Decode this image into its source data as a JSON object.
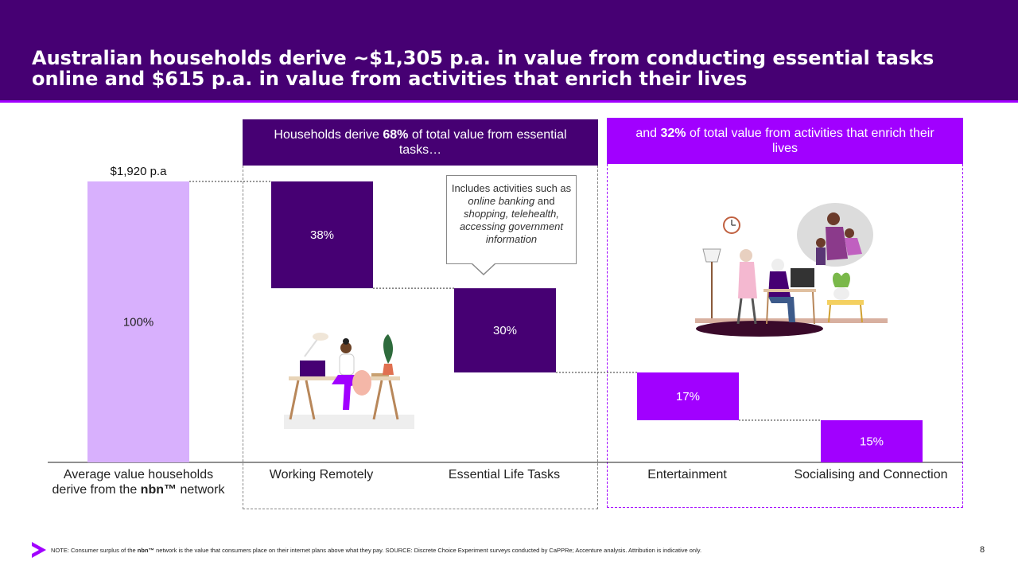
{
  "header": {
    "title": "Australian households derive ~$1,305 p.a. in value from conducting essential tasks online and $615 p.a. in value from activities that enrich their lives"
  },
  "panels": {
    "essential": {
      "pre": "Households derive ",
      "pct": "68%",
      "post": " of total value from essential tasks…"
    },
    "enrich": {
      "pre": "and ",
      "pct": "32%",
      "post": " of total value from activities that enrich their lives"
    }
  },
  "callout": {
    "text_1": "Includes activities such as ",
    "italic_1": "online banking",
    "text_2": " and ",
    "italic_2": "shopping, telehealth, accessing government information"
  },
  "x_labels": {
    "total_pre": "Average value households derive from the ",
    "total_brand": "nbn™",
    "total_post": " network"
  },
  "footer": {
    "note_pre": "NOTE: Consumer surplus of the ",
    "note_brand": "nbn™",
    "note_post": " network is the value that consumers place on their internet plans above what they pay. SOURCE: Discrete Choice Experiment surveys conducted by CaPPRe; Accenture analysis. Attribution is indicative only.",
    "page_number": "8"
  },
  "colors": {
    "dark_purple": "#460073",
    "bright_purple": "#a100ff",
    "light_purple": "#d8b0fd"
  },
  "chart_data": {
    "type": "bar",
    "subtype": "waterfall",
    "total_label": "$1,920 p.a",
    "categories": [
      "Average value households derive from the nbn™ network",
      "Working Remotely",
      "Essential Life Tasks",
      "Entertainment",
      "Socialising and Connection"
    ],
    "values": [
      100,
      38,
      30,
      17,
      15
    ],
    "value_labels": [
      "100%",
      "38%",
      "30%",
      "17%",
      "15%"
    ],
    "unit": "%",
    "ylim": [
      0,
      100
    ],
    "grid": false,
    "legend": "none",
    "bar_colors": [
      "#d8b0fd",
      "#460073",
      "#460073",
      "#a100ff",
      "#a100ff"
    ]
  }
}
